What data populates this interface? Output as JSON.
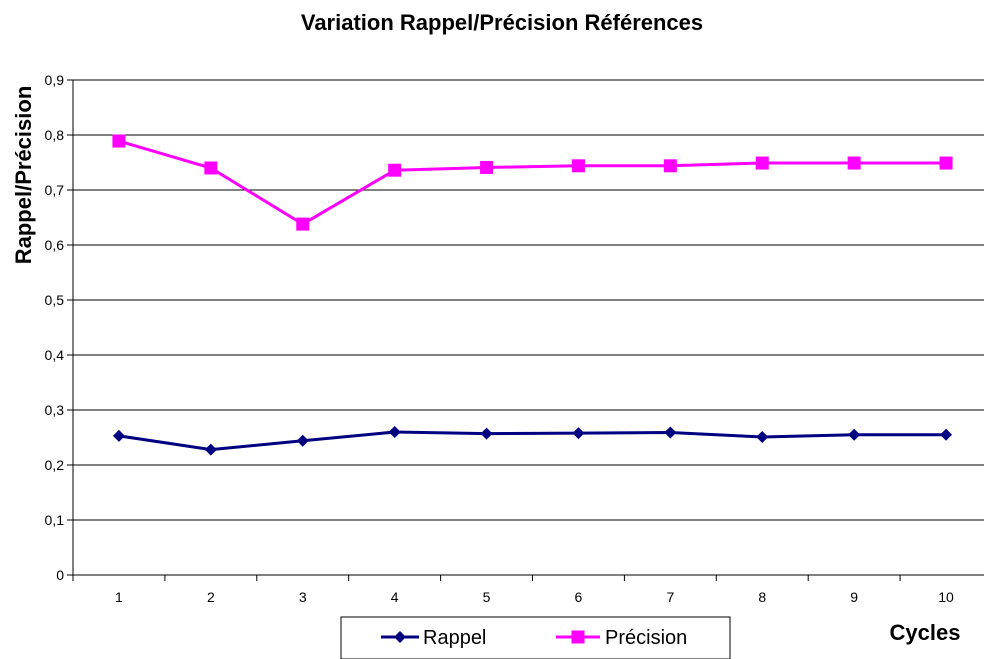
{
  "chart_data": {
    "type": "line",
    "title": "Variation Rappel/Précision Références",
    "xlabel": "Cycles",
    "ylabel": "Rappel/Précision",
    "categories": [
      "1",
      "2",
      "3",
      "4",
      "5",
      "6",
      "7",
      "8",
      "9",
      "10"
    ],
    "y_ticks": [
      "0",
      "0,1",
      "0,2",
      "0,3",
      "0,4",
      "0,5",
      "0,6",
      "0,7",
      "0,8",
      "0,9"
    ],
    "ylim": [
      0,
      0.9
    ],
    "grid": true,
    "legend_position": "bottom",
    "series": [
      {
        "name": "Rappel",
        "color": "#000080",
        "marker": "diamond",
        "values": [
          0.253,
          0.228,
          0.244,
          0.26,
          0.257,
          0.258,
          0.259,
          0.251,
          0.255,
          0.255
        ]
      },
      {
        "name": "Précision",
        "color": "#FF00FF",
        "marker": "square",
        "values": [
          0.789,
          0.74,
          0.638,
          0.736,
          0.741,
          0.744,
          0.744,
          0.749,
          0.749,
          0.749
        ]
      }
    ]
  }
}
